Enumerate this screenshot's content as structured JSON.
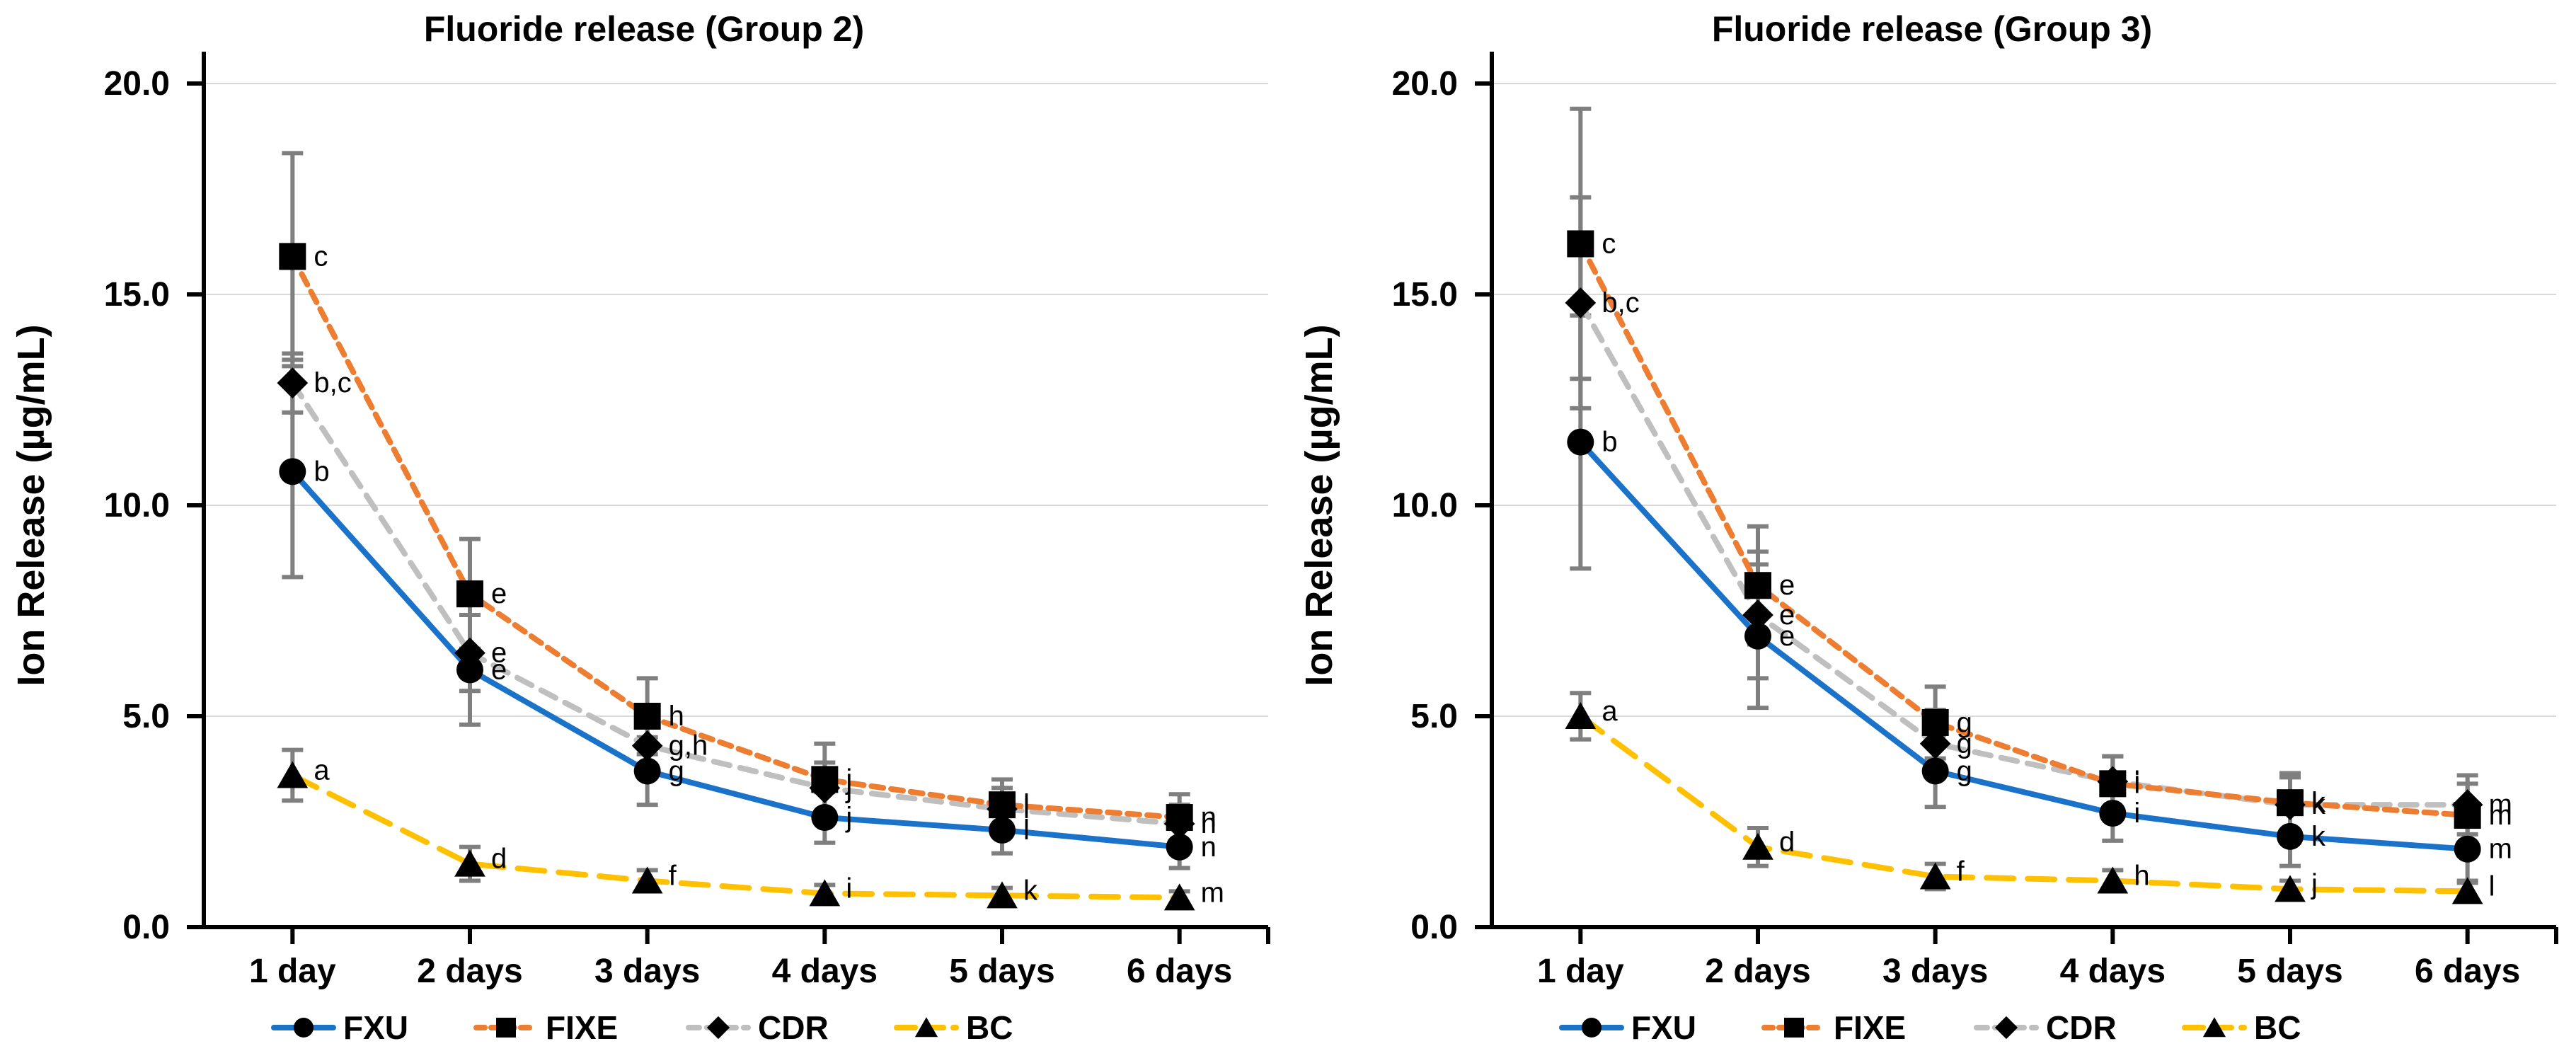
{
  "figure_title": "Fluoride release line charts",
  "colors": {
    "fxu_line": "#1B73C9",
    "fixe_line": "#ED7D31",
    "cdr_line": "#BFBFBF",
    "bc_line": "#FFC000",
    "marker": "#000000",
    "error_bar": "#7F7F7F",
    "gridline": "#D9D9D9",
    "axis": "#000000",
    "text": "#000000"
  },
  "chart_data": [
    {
      "type": "line",
      "title": "Fluoride release (Group 2)",
      "ylabel": "Ion Release (µg/mL)",
      "xlabel": "",
      "ylim": [
        0,
        20
      ],
      "ytick_values": [
        0,
        5,
        10,
        15,
        20
      ],
      "ytick_labels": [
        "0.0",
        "5.0",
        "10.0",
        "15.0",
        "20.0"
      ],
      "categories": [
        "1 day",
        "2 days",
        "3 days",
        "4 days",
        "5 days",
        "6 days"
      ],
      "grid": true,
      "legend_position": "bottom",
      "series": [
        {
          "name": "FXU",
          "marker": "circle",
          "dash": "solid",
          "color_key": "fxu_line",
          "values": [
            10.8,
            6.1,
            3.7,
            2.6,
            2.3,
            1.9
          ],
          "errors": [
            2.5,
            1.3,
            0.8,
            0.6,
            0.55,
            0.5
          ],
          "point_labels": [
            "b",
            "e",
            "g",
            "j",
            "l",
            "n"
          ]
        },
        {
          "name": "FIXE",
          "marker": "square",
          "dash": "short",
          "color_key": "fixe_line",
          "values": [
            15.9,
            7.9,
            5.0,
            3.5,
            2.9,
            2.6
          ],
          "errors": [
            2.45,
            1.3,
            0.9,
            0.85,
            0.6,
            0.55
          ],
          "point_labels": [
            "c",
            "e",
            "h",
            "j",
            "l",
            "n"
          ]
        },
        {
          "name": "CDR",
          "marker": "diamond",
          "dash": "medium",
          "color_key": "cdr_line",
          "values": [
            12.9,
            6.5,
            4.3,
            3.3,
            2.8,
            2.45
          ],
          "errors": [
            0.7,
            0.9,
            0.7,
            0.6,
            0.5,
            0.45
          ],
          "point_labels": [
            "b,c",
            "e",
            "g,h",
            "j",
            "l",
            "n"
          ]
        },
        {
          "name": "BC",
          "marker": "triangle",
          "dash": "long",
          "color_key": "bc_line",
          "values": [
            3.6,
            1.5,
            1.1,
            0.8,
            0.75,
            0.7
          ],
          "errors": [
            0.6,
            0.4,
            0.25,
            0.2,
            0.18,
            0.15
          ],
          "point_labels": [
            "a",
            "d",
            "f",
            "i",
            "k",
            "m"
          ]
        }
      ]
    },
    {
      "type": "line",
      "title": "Fluoride release (Group 3)",
      "ylabel": "Ion Release (µg/mL)",
      "xlabel": "",
      "ylim": [
        0,
        20
      ],
      "ytick_values": [
        0,
        5,
        10,
        15,
        20
      ],
      "ytick_labels": [
        "0.0",
        "5.0",
        "10.0",
        "15.0",
        "20.0"
      ],
      "categories": [
        "1 day",
        "2 days",
        "3 days",
        "4 days",
        "5 days",
        "6 days"
      ],
      "grid": true,
      "legend_position": "bottom",
      "series": [
        {
          "name": "FXU",
          "marker": "circle",
          "dash": "solid",
          "color_key": "fxu_line",
          "values": [
            11.5,
            6.9,
            3.7,
            2.7,
            2.15,
            1.85
          ],
          "errors": [
            3.0,
            1.7,
            0.85,
            0.65,
            0.7,
            0.75
          ],
          "point_labels": [
            "b",
            "e",
            "g",
            "i",
            "k",
            "m"
          ]
        },
        {
          "name": "FIXE",
          "marker": "square",
          "dash": "short",
          "color_key": "fixe_line",
          "values": [
            16.2,
            8.1,
            4.85,
            3.4,
            2.95,
            2.65
          ],
          "errors": [
            3.2,
            1.4,
            0.85,
            0.65,
            0.7,
            0.75
          ],
          "point_labels": [
            "c",
            "e",
            "g",
            "i",
            "k",
            "m"
          ]
        },
        {
          "name": "CDR",
          "marker": "diamond",
          "dash": "medium",
          "color_key": "cdr_line",
          "values": [
            14.8,
            7.4,
            4.35,
            3.45,
            2.9,
            2.9
          ],
          "errors": [
            2.5,
            1.5,
            0.8,
            0.6,
            0.65,
            0.7
          ],
          "point_labels": [
            "b,c",
            "e",
            "g",
            "i",
            "k",
            "m"
          ]
        },
        {
          "name": "BC",
          "marker": "triangle",
          "dash": "long",
          "color_key": "bc_line",
          "values": [
            5.0,
            1.9,
            1.2,
            1.1,
            0.9,
            0.85
          ],
          "errors": [
            0.55,
            0.45,
            0.3,
            0.25,
            0.2,
            0.2
          ],
          "point_labels": [
            "a",
            "d",
            "f",
            "h",
            "j",
            "l"
          ]
        }
      ]
    }
  ],
  "legend": {
    "items": [
      "FXU",
      "FIXE",
      "CDR",
      "BC"
    ]
  }
}
